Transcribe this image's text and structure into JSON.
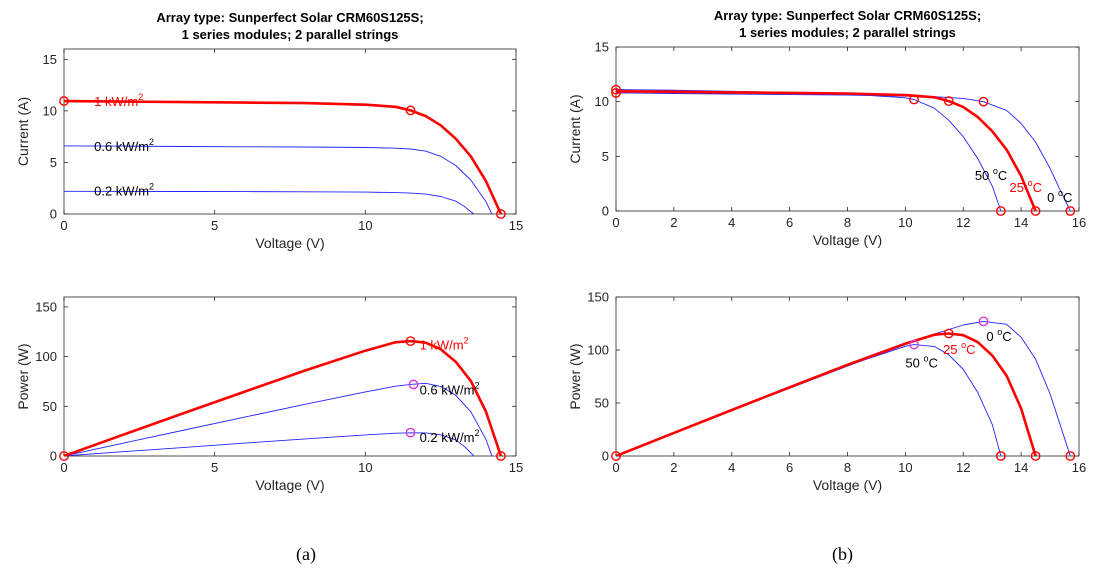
{
  "captions": [
    "(a)",
    "(b)"
  ],
  "colors": {
    "red": "#ff0000",
    "blue": "#2323ff",
    "magenta": "#d63ad6",
    "axis": "#262626"
  },
  "chart_data": [
    {
      "type": "line",
      "title": "Array type: Sunperfect Solar CRM60S125S;",
      "subtitle": "1 series modules; 2 parallel strings",
      "xlabel": "Voltage (V)",
      "ylabel": "Current (A)",
      "xlim": [
        0,
        15
      ],
      "ylim": [
        0,
        16
      ],
      "xticks": [
        0,
        5,
        10,
        15
      ],
      "yticks": [
        0,
        5,
        10,
        15
      ],
      "grid": false,
      "series": [
        {
          "name": "1 kW/m²",
          "emphasis": true,
          "x": [
            0,
            2,
            4,
            6,
            8,
            10,
            11,
            11.5,
            12,
            12.5,
            13,
            13.5,
            14,
            14.5
          ],
          "y": [
            10.95,
            10.9,
            10.85,
            10.8,
            10.75,
            10.6,
            10.4,
            10.05,
            9.5,
            8.6,
            7.3,
            5.6,
            3.2,
            0
          ]
        },
        {
          "name": "0.6 kW/m²",
          "x": [
            0,
            2,
            4,
            6,
            8,
            10,
            11,
            11.5,
            12,
            12.5,
            13,
            13.5,
            14,
            14.2
          ],
          "y": [
            6.6,
            6.58,
            6.55,
            6.52,
            6.5,
            6.45,
            6.38,
            6.3,
            6.1,
            5.6,
            4.7,
            3.3,
            1.2,
            0
          ]
        },
        {
          "name": "0.2 kW/m²",
          "x": [
            0,
            2,
            4,
            6,
            8,
            10,
            11,
            11.5,
            12,
            12.5,
            13,
            13.3,
            13.6
          ],
          "y": [
            2.2,
            2.19,
            2.18,
            2.17,
            2.15,
            2.12,
            2.08,
            2.03,
            1.93,
            1.7,
            1.25,
            0.7,
            0
          ]
        }
      ],
      "markers": [
        {
          "x": 0,
          "y": 10.95,
          "color": "red"
        },
        {
          "x": 11.5,
          "y": 10.05,
          "color": "red"
        },
        {
          "x": 14.5,
          "y": 0,
          "color": "red"
        }
      ],
      "annotations": [
        {
          "text": "1 kW/m",
          "sup": "2",
          "x": 1.0,
          "y": 10.95,
          "color": "red"
        },
        {
          "text": "0.6 kW/m",
          "sup": "2",
          "x": 1.0,
          "y": 6.6,
          "color": "black"
        },
        {
          "text": "0.2 kW/m",
          "sup": "2",
          "x": 1.0,
          "y": 2.3,
          "color": "black"
        }
      ]
    },
    {
      "type": "line",
      "title": "",
      "xlabel": "Voltage (V)",
      "ylabel": "Power (W)",
      "xlim": [
        0,
        15
      ],
      "ylim": [
        0,
        160
      ],
      "xticks": [
        0,
        5,
        10,
        15
      ],
      "yticks": [
        0,
        50,
        100,
        150
      ],
      "grid": false,
      "series": [
        {
          "name": "1 kW/m²",
          "emphasis": true,
          "x": [
            0,
            2,
            4,
            6,
            8,
            10,
            11,
            11.5,
            12,
            12.5,
            13,
            13.5,
            14,
            14.5
          ],
          "y": [
            0,
            21.8,
            43.4,
            64.8,
            86,
            106,
            114.4,
            115.6,
            114,
            107.5,
            94.9,
            75.6,
            44.8,
            0
          ]
        },
        {
          "name": "0.6 kW/m²",
          "x": [
            0,
            2,
            4,
            6,
            8,
            10,
            11,
            11.5,
            12,
            12.5,
            13,
            13.5,
            14,
            14.2
          ],
          "y": [
            0,
            13.2,
            26.2,
            39.1,
            52,
            64.5,
            70.2,
            72,
            73.2,
            70,
            61.1,
            44.6,
            16.8,
            0
          ]
        },
        {
          "name": "0.2 kW/m²",
          "x": [
            0,
            2,
            4,
            6,
            8,
            10,
            11,
            11.5,
            12,
            12.5,
            13,
            13.3,
            13.6
          ],
          "y": [
            0,
            4.4,
            8.7,
            13,
            17.2,
            21.2,
            22.9,
            23.3,
            23.2,
            21.3,
            16.3,
            9.3,
            0
          ]
        }
      ],
      "markers": [
        {
          "x": 0,
          "y": 0,
          "color": "red"
        },
        {
          "x": 11.5,
          "y": 115.6,
          "color": "red"
        },
        {
          "x": 14.5,
          "y": 0,
          "color": "red"
        },
        {
          "x": 11.6,
          "y": 72,
          "color": "magenta"
        },
        {
          "x": 11.5,
          "y": 23.5,
          "color": "magenta"
        }
      ],
      "annotations": [
        {
          "text": "1 kW/m",
          "sup": "2",
          "x": 11.8,
          "y": 112,
          "color": "red"
        },
        {
          "text": "0.6 kW/m",
          "sup": "2",
          "x": 11.8,
          "y": 67,
          "color": "black"
        },
        {
          "text": "0.2 kW/m",
          "sup": "2",
          "x": 11.8,
          "y": 19,
          "color": "black"
        }
      ]
    },
    {
      "type": "line",
      "title": "Array type: Sunperfect Solar CRM60S125S;",
      "subtitle": "1 series modules; 2 parallel strings",
      "xlabel": "Voltage (V)",
      "ylabel": "Current (A)",
      "xlim": [
        0,
        16
      ],
      "ylim": [
        0,
        15
      ],
      "xticks": [
        0,
        2,
        4,
        6,
        8,
        10,
        12,
        14,
        16
      ],
      "yticks": [
        0,
        5,
        10,
        15
      ],
      "grid": false,
      "series": [
        {
          "name": "25 °C",
          "emphasis": true,
          "x": [
            0,
            2,
            4,
            6,
            8,
            10,
            11,
            11.5,
            12,
            12.5,
            13,
            13.5,
            14,
            14.5
          ],
          "y": [
            10.95,
            10.9,
            10.85,
            10.8,
            10.75,
            10.6,
            10.4,
            10.05,
            9.5,
            8.6,
            7.3,
            5.6,
            3.2,
            0
          ]
        },
        {
          "name": "50 °C",
          "x": [
            0,
            2,
            4,
            6,
            8,
            10,
            10.3,
            11,
            11.5,
            12,
            12.5,
            13,
            13.3
          ],
          "y": [
            11.1,
            11.05,
            10.95,
            10.85,
            10.7,
            10.35,
            10.2,
            9.4,
            8.3,
            6.8,
            4.8,
            2.3,
            0
          ]
        },
        {
          "name": "0 °C",
          "x": [
            0,
            2,
            4,
            6,
            8,
            10,
            11,
            12,
            12.7,
            13.5,
            14,
            14.5,
            15,
            15.3,
            15.7
          ],
          "y": [
            10.8,
            10.75,
            10.7,
            10.65,
            10.6,
            10.5,
            10.45,
            10.3,
            10.0,
            9.2,
            8.0,
            6.3,
            3.9,
            2.2,
            0
          ]
        }
      ],
      "markers": [
        {
          "x": 0,
          "y": 11.1,
          "color": "red"
        },
        {
          "x": 0,
          "y": 10.8,
          "color": "red"
        },
        {
          "x": 10.3,
          "y": 10.2,
          "color": "red"
        },
        {
          "x": 11.5,
          "y": 10.05,
          "color": "red"
        },
        {
          "x": 12.7,
          "y": 10.0,
          "color": "red"
        },
        {
          "x": 13.3,
          "y": 0,
          "color": "red"
        },
        {
          "x": 14.5,
          "y": 0,
          "color": "red"
        },
        {
          "x": 15.7,
          "y": 0,
          "color": "red"
        }
      ],
      "annotations": [
        {
          "text": "50 ",
          "sup": "o",
          "tail": "C",
          "x": 12.4,
          "y": 3.3,
          "color": "black"
        },
        {
          "text": "25 ",
          "sup": "o",
          "tail": "C",
          "x": 13.6,
          "y": 2.2,
          "color": "red"
        },
        {
          "text": "0 ",
          "sup": "o",
          "tail": "C",
          "x": 14.9,
          "y": 1.3,
          "color": "black"
        }
      ]
    },
    {
      "type": "line",
      "title": "",
      "xlabel": "Voltage (V)",
      "ylabel": "Power (W)",
      "xlim": [
        0,
        16
      ],
      "ylim": [
        0,
        150
      ],
      "xticks": [
        0,
        2,
        4,
        6,
        8,
        10,
        12,
        14,
        16
      ],
      "yticks": [
        0,
        50,
        100,
        150
      ],
      "grid": false,
      "series": [
        {
          "name": "25 °C",
          "emphasis": true,
          "x": [
            0,
            2,
            4,
            6,
            8,
            10,
            11,
            11.5,
            12,
            12.5,
            13,
            13.5,
            14,
            14.5
          ],
          "y": [
            0,
            21.8,
            43.4,
            64.8,
            86,
            106,
            114.4,
            115.6,
            114,
            107.5,
            94.9,
            75.6,
            44.8,
            0
          ]
        },
        {
          "name": "50 °C",
          "x": [
            0,
            2,
            4,
            6,
            8,
            10,
            10.3,
            11,
            11.5,
            12,
            12.5,
            13,
            13.3
          ],
          "y": [
            0,
            22.1,
            43.8,
            65.1,
            85.6,
            103.5,
            105.1,
            103.4,
            95.5,
            81.6,
            60,
            29.9,
            0
          ]
        },
        {
          "name": "0 °C",
          "x": [
            0,
            2,
            4,
            6,
            8,
            10,
            11,
            12,
            12.7,
            13.5,
            14,
            14.5,
            15,
            15.3,
            15.7
          ],
          "y": [
            0,
            21.5,
            42.8,
            63.9,
            84.8,
            105,
            115,
            123.6,
            127,
            124.2,
            112,
            91.4,
            58.5,
            33.7,
            0
          ]
        }
      ],
      "markers": [
        {
          "x": 0,
          "y": 0,
          "color": "red"
        },
        {
          "x": 10.3,
          "y": 105.1,
          "color": "magenta"
        },
        {
          "x": 11.5,
          "y": 115.6,
          "color": "red"
        },
        {
          "x": 12.7,
          "y": 127,
          "color": "magenta"
        },
        {
          "x": 13.3,
          "y": 0,
          "color": "red"
        },
        {
          "x": 14.5,
          "y": 0,
          "color": "red"
        },
        {
          "x": 15.7,
          "y": 0,
          "color": "red"
        }
      ],
      "annotations": [
        {
          "text": "0 ",
          "sup": "o",
          "tail": "C",
          "x": 12.8,
          "y": 113,
          "color": "black"
        },
        {
          "text": "25 ",
          "sup": "o",
          "tail": "C",
          "x": 11.3,
          "y": 101,
          "color": "red"
        },
        {
          "text": "50 ",
          "sup": "o",
          "tail": "C",
          "x": 10.0,
          "y": 88,
          "color": "black"
        }
      ]
    }
  ]
}
